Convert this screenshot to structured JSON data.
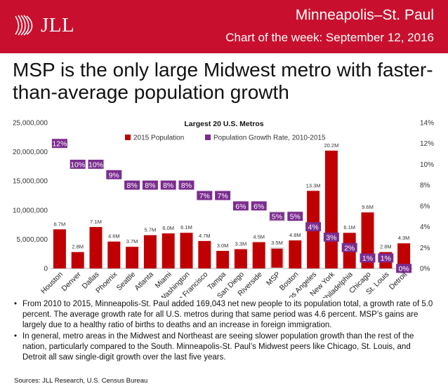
{
  "header": {
    "logo_text": "JLL",
    "title": "Minneapolis–St. Paul",
    "subtitle": "Chart of the week: September 12, 2016"
  },
  "headline": "MSP is the only large Midwest metro with faster-than-average population growth",
  "colors": {
    "brand_red": "#c8102e",
    "bar_red": "#c00000",
    "highlight_bar": "#c00000",
    "highlight_border": "#d9d9d9",
    "growth_purple": "#7b2d8e"
  },
  "chart_data": {
    "type": "bar",
    "title": "Largest 20 U.S. Metros",
    "categories": [
      "Houston",
      "Denver",
      "Dallas",
      "Phoenix",
      "Seattle",
      "Atlanta",
      "Miami",
      "Washington",
      "San Francisco",
      "Tampa",
      "San Diego",
      "Riverside",
      "MSP",
      "Boston",
      "Los Angeles",
      "New York",
      "Philadelphia",
      "Chicago",
      "St. Louis",
      "Detroit"
    ],
    "series": [
      {
        "name": "2015 Population",
        "axis": "left",
        "values": [
          6700000,
          2800000,
          7100000,
          4600000,
          3700000,
          5700000,
          6000000,
          6100000,
          4700000,
          3000000,
          3300000,
          4500000,
          3500000,
          4800000,
          13300000,
          20200000,
          6100000,
          9600000,
          2800000,
          4300000
        ],
        "labels": [
          "6.7M",
          "2.8M",
          "7.1M",
          "4.6M",
          "3.7M",
          "5.7M",
          "6.0M",
          "6.1M",
          "4.7M",
          "3.0M",
          "3.3M",
          "4.5M",
          "3.5M",
          "4.8M",
          "13.3M",
          "20.2M",
          "6.1M",
          "9.6M",
          "2.8M",
          "4.3M"
        ]
      },
      {
        "name": "Population Growth Rate, 2010-2015",
        "axis": "right",
        "values": [
          12,
          10,
          10,
          9,
          8,
          8,
          8,
          8,
          7,
          7,
          6,
          6,
          5,
          5,
          4,
          3,
          2,
          1,
          1,
          0
        ],
        "labels": [
          "12%",
          "10%",
          "10%",
          "9%",
          "8%",
          "8%",
          "8%",
          "8%",
          "7%",
          "7%",
          "6%",
          "6%",
          "5%",
          "5%",
          "4%",
          "3%",
          "2%",
          "1%",
          "1%",
          "0%"
        ]
      }
    ],
    "highlight_category": "MSP",
    "y_left": {
      "ylim": [
        0,
        25000000
      ],
      "ticks": [
        "0",
        "5,000,000",
        "10,000,000",
        "15,000,000",
        "20,000,000",
        "25,000,000"
      ]
    },
    "y_right": {
      "ylim": [
        0,
        14
      ],
      "ticks": [
        "0%",
        "2%",
        "4%",
        "6%",
        "8%",
        "10%",
        "12%",
        "14%"
      ]
    },
    "legend_placement": "top-center",
    "grid": false
  },
  "bullets": [
    "From 2010 to 2015, Minneapolis-St. Paul added 169,043 net new people to its population total, a growth rate of 5.0 percent. The average growth rate for all U.S. metros during that same period was 4.6 percent. MSP’s gains are largely due to a healthy ratio of births to deaths and an increase in foreign immigration.",
    "In general, metro areas in the Midwest and Northeast are seeing slower population growth than the rest of the nation, particularly compared to the South. Minneapolis-St. Paul’s Midwest peers like Chicago, St. Louis, and Detroit all saw single-digit growth over the last five years."
  ],
  "source": "Sources: JLL Research, U.S. Census Bureau"
}
